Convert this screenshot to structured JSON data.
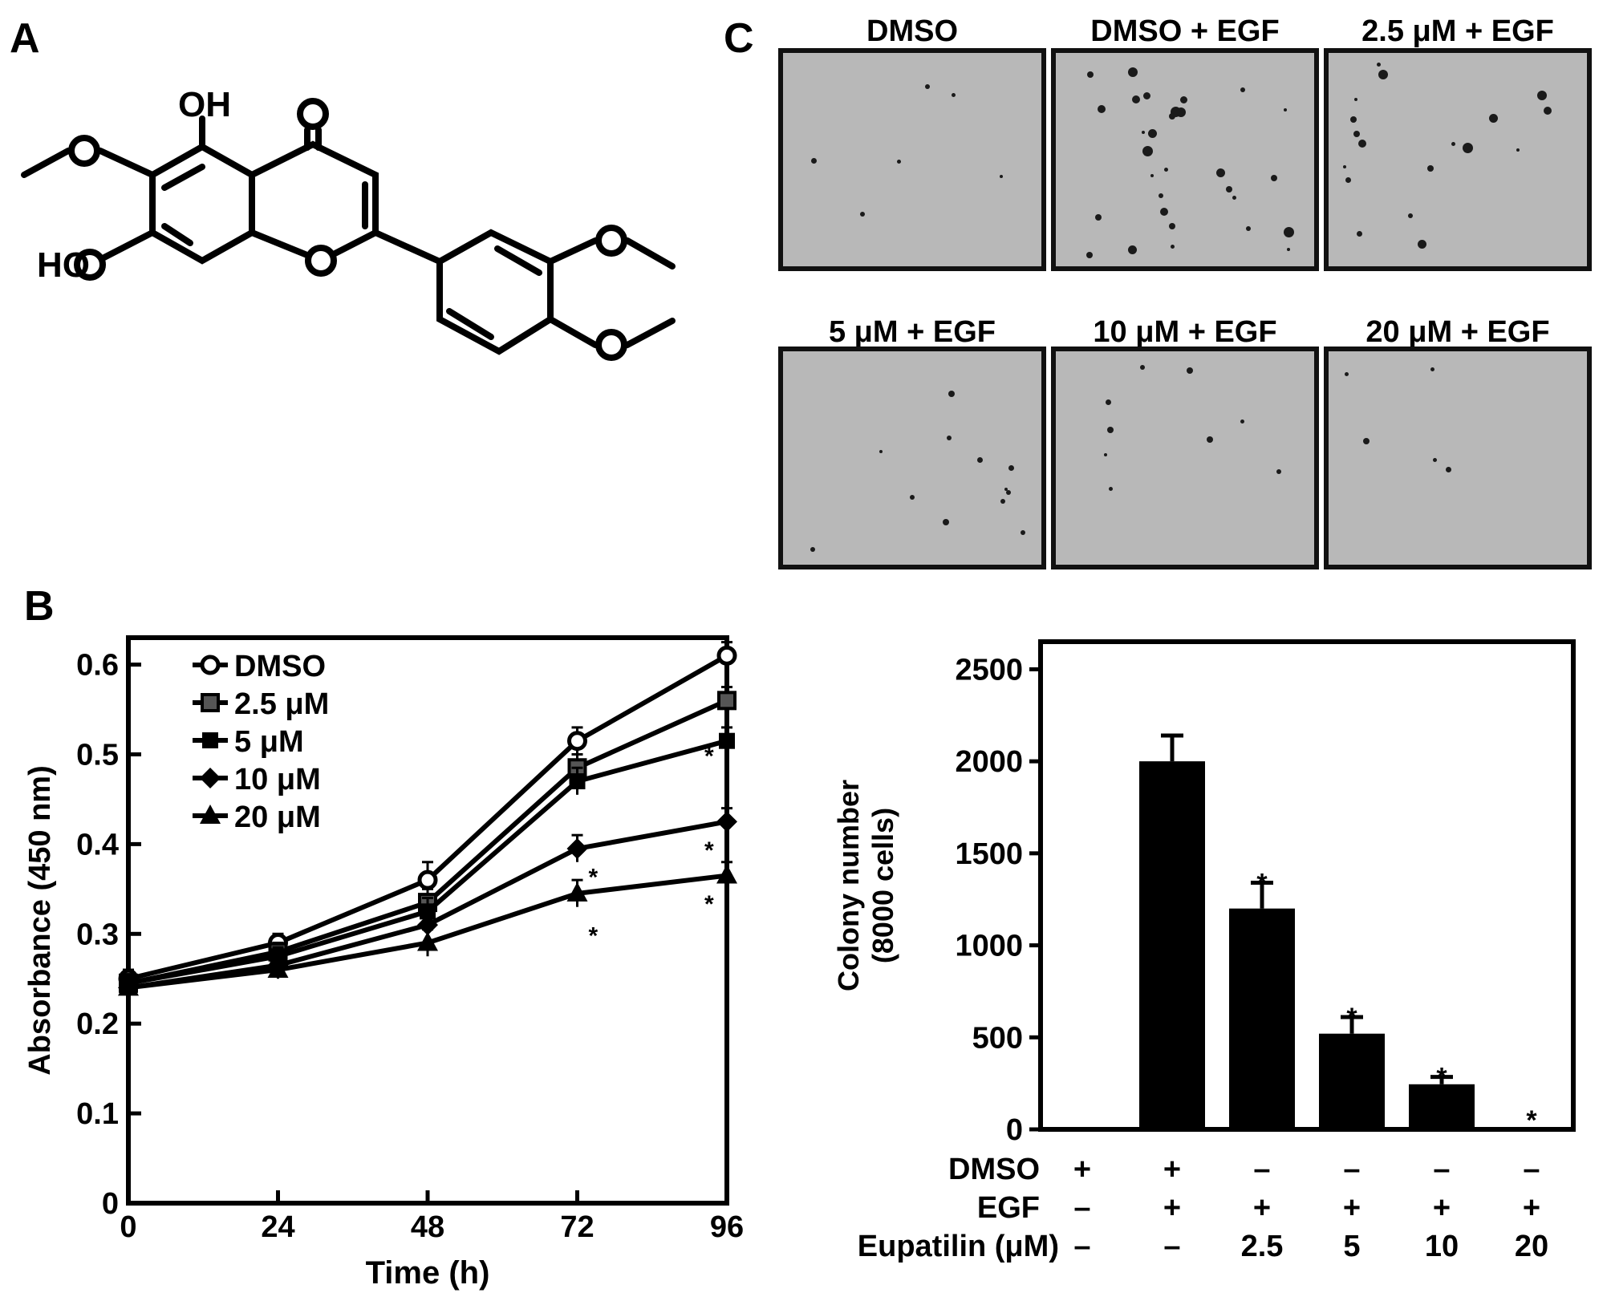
{
  "panel_labels": {
    "a": "A",
    "b": "B",
    "c": "C"
  },
  "structure": {
    "atoms": {
      "oh_top": "OH",
      "oh_left": "HO",
      "o_ketone": "O",
      "o_ring": "O",
      "o_meo_a": "O",
      "o_meo_b": "O",
      "o_meo_c": "O"
    }
  },
  "colony_images": {
    "wells": [
      {
        "label": "DMSO",
        "colonies": 6
      },
      {
        "label": "DMSO + EGF",
        "colonies": 30
      },
      {
        "label": "2.5 μM + EGF",
        "colonies": 18
      },
      {
        "label": "5 μM + EGF",
        "colonies": 12
      },
      {
        "label": "10 μM + EGF",
        "colonies": 9
      },
      {
        "label": "20 μM + EGF",
        "colonies": 5
      }
    ],
    "well_color": "#b8b8b8",
    "colony_color": "#1a1a1a"
  },
  "chart_data": [
    {
      "type": "line",
      "xlabel": "Time (h)",
      "ylabel": "Absorbance (450 nm)",
      "x": [
        0,
        24,
        48,
        72,
        96
      ],
      "x_ticks": [
        "0",
        "24",
        "48",
        "72",
        "96"
      ],
      "xlim": [
        0,
        96
      ],
      "ylim": [
        0,
        0.63
      ],
      "y_ticks": [
        "0",
        "0.1",
        "0.2",
        "0.3",
        "0.4",
        "0.5",
        "0.6"
      ],
      "legend_position": "top-left",
      "series": [
        {
          "name": "DMSO",
          "marker": "open-circle",
          "values": [
            0.25,
            0.29,
            0.36,
            0.515,
            0.61
          ],
          "errors": [
            0.01,
            0.01,
            0.02,
            0.015,
            0.015
          ]
        },
        {
          "name": "2.5 μM",
          "marker": "square",
          "values": [
            0.245,
            0.28,
            0.335,
            0.485,
            0.56
          ],
          "errors": [
            0.01,
            0.01,
            0.015,
            0.015,
            0.015
          ]
        },
        {
          "name": "5 μM",
          "marker": "filled-square",
          "values": [
            0.245,
            0.275,
            0.325,
            0.47,
            0.515
          ],
          "errors": [
            0.01,
            0.01,
            0.015,
            0.015,
            0.015
          ]
        },
        {
          "name": "10 μM",
          "marker": "diamond",
          "values": [
            0.24,
            0.265,
            0.31,
            0.395,
            0.425
          ],
          "errors": [
            0.01,
            0.01,
            0.015,
            0.015,
            0.015
          ]
        },
        {
          "name": "20 μM",
          "marker": "triangle",
          "values": [
            0.24,
            0.26,
            0.29,
            0.345,
            0.365
          ],
          "errors": [
            0.01,
            0.01,
            0.015,
            0.015,
            0.015
          ]
        }
      ],
      "significance": [
        {
          "x": 96,
          "y": 0.5,
          "label": "*"
        },
        {
          "x": 72,
          "y": 0.365,
          "label": "*"
        },
        {
          "x": 96,
          "y": 0.395,
          "label": "*"
        },
        {
          "x": 72,
          "y": 0.3,
          "label": "*"
        },
        {
          "x": 96,
          "y": 0.335,
          "label": "*"
        }
      ],
      "grid": false
    },
    {
      "type": "bar",
      "ylabel": "Colony number",
      "ylabel2": "(8000 cells)",
      "ylim": [
        0,
        2650
      ],
      "y_ticks": [
        "0",
        "500",
        "1000",
        "1500",
        "2000",
        "2500"
      ],
      "values": [
        0,
        2000,
        1200,
        520,
        245,
        0
      ],
      "errors": [
        0,
        140,
        140,
        90,
        40,
        0
      ],
      "significance": [
        "",
        "",
        "*",
        "*",
        "*",
        "*"
      ],
      "bar_color": "#000000",
      "conditions": {
        "rows": [
          {
            "label": "DMSO",
            "values": [
              "+",
              "+",
              "–",
              "–",
              "–",
              "–"
            ]
          },
          {
            "label": "EGF",
            "values": [
              "–",
              "+",
              "+",
              "+",
              "+",
              "+"
            ]
          },
          {
            "label": "Eupatilin (μM)",
            "values": [
              "–",
              "–",
              "2.5",
              "5",
              "10",
              "20"
            ]
          }
        ]
      },
      "grid": false
    }
  ]
}
